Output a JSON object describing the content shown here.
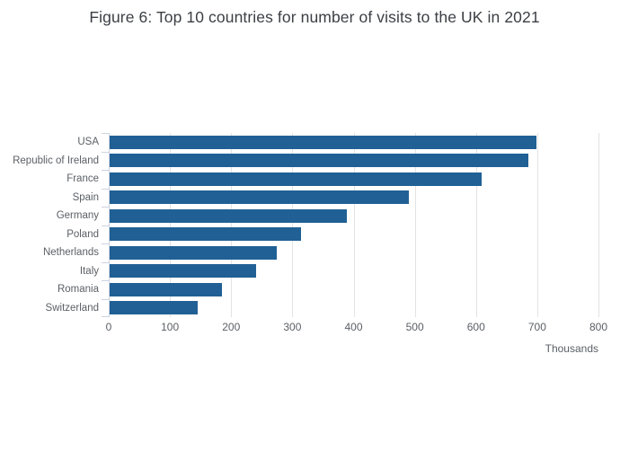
{
  "title": "Figure 6: Top 10 countries for number of visits to the UK in 2021",
  "chart_data": {
    "type": "bar",
    "orientation": "horizontal",
    "title": "Figure 6: Top 10 countries for number of visits to the UK in 2021",
    "categories": [
      "USA",
      "Republic of Ireland",
      "France",
      "Spain",
      "Germany",
      "Poland",
      "Netherlands",
      "Italy",
      "Romania",
      "Switzerland"
    ],
    "values": [
      697,
      684,
      607,
      489,
      387,
      313,
      273,
      239,
      184,
      144
    ],
    "xlabel": "Thousands",
    "ylabel": "",
    "xlim": [
      0,
      800
    ],
    "xticks": [
      0,
      100,
      200,
      300,
      400,
      500,
      600,
      700,
      800
    ],
    "grid": "vertical",
    "legend": "none",
    "colors": {
      "bar": "#206095",
      "gridline": "#e3e3e3",
      "axis_line": "#ccd3e2",
      "tick_label": "#5b6066",
      "title": "#3b3f44"
    }
  }
}
